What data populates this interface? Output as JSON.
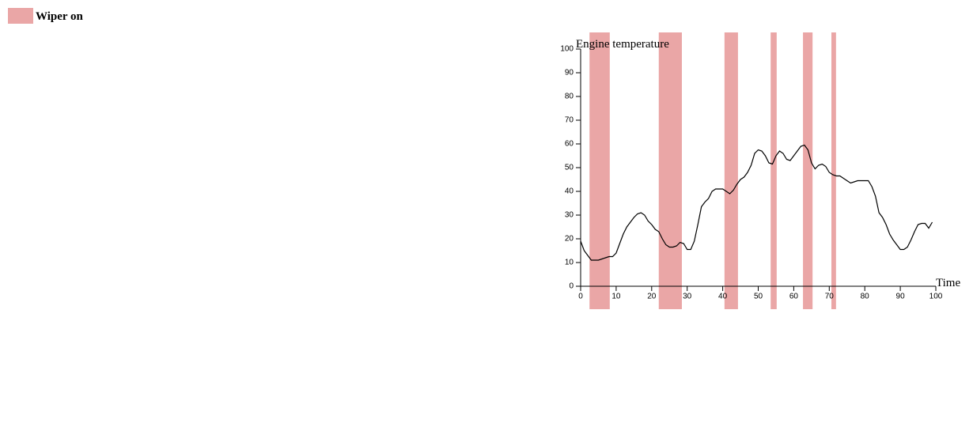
{
  "chart_data": {
    "type": "line",
    "x_label": "Time",
    "y_label": "Engine temperature",
    "x": [
      0,
      1,
      2,
      3,
      4,
      5,
      6,
      7,
      8,
      9,
      10,
      11,
      12,
      13,
      14,
      15,
      16,
      17,
      18,
      19,
      20,
      21,
      22,
      23,
      24,
      25,
      26,
      27,
      28,
      29,
      30,
      31,
      32,
      33,
      34,
      35,
      36,
      37,
      38,
      39,
      40,
      41,
      42,
      43,
      44,
      45,
      46,
      47,
      48,
      49,
      50,
      51,
      52,
      53,
      54,
      55,
      56,
      57,
      58,
      59,
      60,
      61,
      62,
      63,
      64,
      65,
      66,
      67,
      68,
      69,
      70,
      71,
      72,
      73,
      74,
      75,
      76,
      77,
      78,
      79,
      80,
      81,
      82,
      83,
      84,
      85,
      86,
      87,
      88,
      89,
      90,
      91,
      92,
      93,
      94,
      95,
      96,
      97,
      98,
      99
    ],
    "values": [
      19,
      15,
      13,
      11,
      11,
      11,
      11.5,
      12,
      12.5,
      12.5,
      14,
      18,
      22,
      25,
      27,
      29,
      30.5,
      31,
      30,
      27.5,
      26,
      24,
      23,
      20,
      17.5,
      16.5,
      16.5,
      17,
      18.5,
      18,
      15.5,
      15.5,
      19,
      26,
      33.5,
      35.5,
      37,
      40,
      41,
      41,
      41,
      40,
      39,
      40.5,
      43,
      45,
      46,
      48,
      51,
      56,
      57.5,
      57,
      55,
      52,
      51.5,
      55,
      57,
      56,
      53.5,
      53,
      55,
      57,
      59,
      59.5,
      57.5,
      52,
      49.5,
      51,
      51.5,
      50.5,
      48,
      47,
      46.5,
      46.5,
      45.5,
      44.5,
      43.5,
      44,
      44.5,
      44.5,
      44.5,
      44.5,
      42,
      38,
      31,
      29,
      26,
      22,
      19.5,
      17.5,
      15.5,
      15.5,
      16.5,
      19.5,
      23,
      26,
      26.5,
      26.5,
      24.5,
      27
    ],
    "color": "#000000",
    "highlights": {
      "name": "Wiper on",
      "color": "#eaa6a6",
      "intervals": [
        [
          2.5,
          8.2
        ],
        [
          22,
          28.5
        ],
        [
          40.5,
          44.3
        ],
        [
          53.5,
          55.2
        ],
        [
          62.6,
          65.3
        ],
        [
          70.6,
          71.9
        ]
      ]
    },
    "xlim": [
      0,
      100
    ],
    "xticks": [
      0,
      10,
      20,
      30,
      40,
      50,
      60,
      70,
      80,
      90,
      100
    ],
    "ylim": [
      0,
      100
    ],
    "yticks": [
      0,
      10,
      20,
      30,
      40,
      50,
      60,
      70,
      80,
      90,
      100
    ]
  }
}
